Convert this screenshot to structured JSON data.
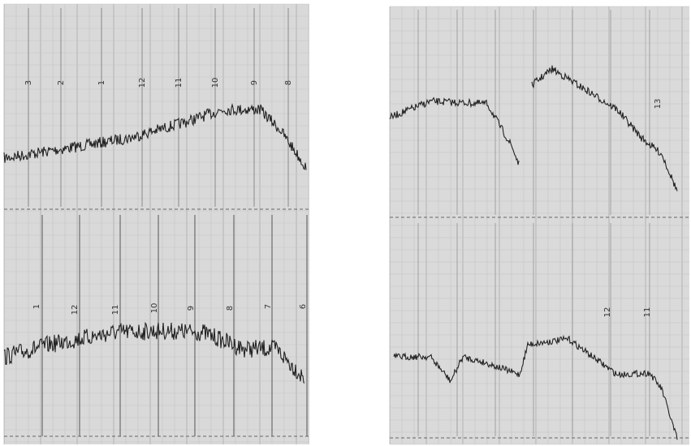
{
  "panels": [
    {
      "labels": [
        "3",
        "2",
        "1",
        "12",
        "11",
        "10",
        "9",
        "8"
      ]
    },
    {
      "labels": [
        "1",
        "12",
        "11",
        "10",
        "9",
        "8",
        "7",
        "6"
      ]
    },
    {
      "labels": [
        "13"
      ]
    },
    {
      "labels": [
        "12",
        "11"
      ]
    }
  ]
}
